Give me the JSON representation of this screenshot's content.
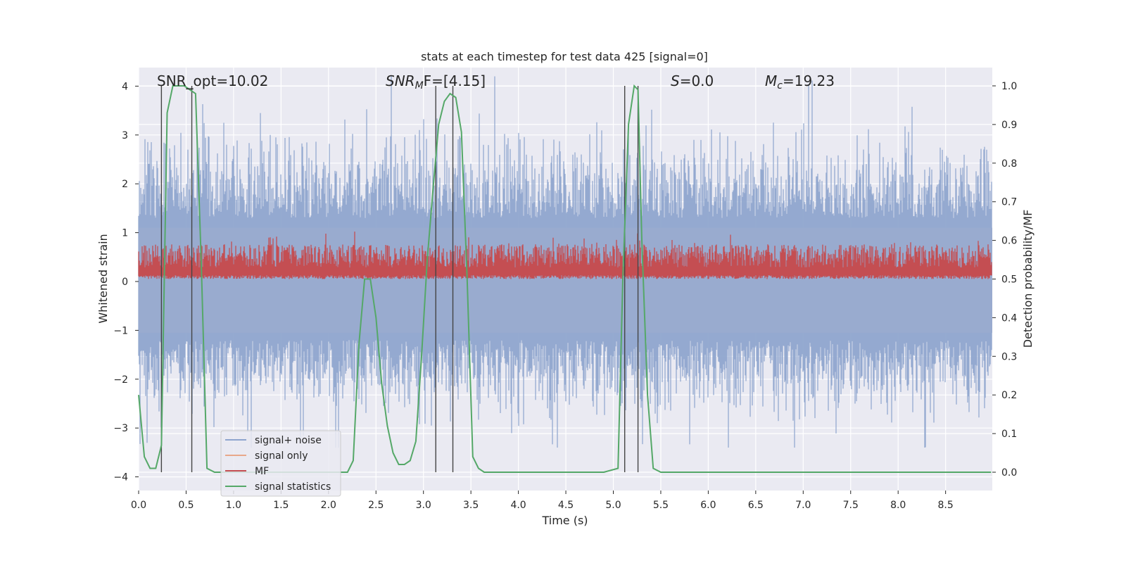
{
  "chart_data": {
    "type": "line",
    "title": "stats at each timestep for test data 425 [signal=0]",
    "xlabel": "Time (s)",
    "ylabel": "Whitened strain",
    "ylabel_right": "Detection probability/MF",
    "xlim": [
      0.0,
      9.0
    ],
    "ylim": [
      -4.3,
      4.4
    ],
    "ylim_right": [
      -0.05,
      1.04
    ],
    "x_ticks": [
      "0.0",
      "0.5",
      "1.0",
      "1.5",
      "2.0",
      "2.5",
      "3.0",
      "3.5",
      "4.0",
      "4.5",
      "5.0",
      "5.5",
      "6.0",
      "6.5",
      "7.0",
      "7.5",
      "8.0",
      "8.5"
    ],
    "y_ticks": [
      "4",
      "3",
      "2",
      "1",
      "0",
      "−1",
      "−2",
      "−3",
      "−4"
    ],
    "y_tick_values": [
      4,
      3,
      2,
      1,
      0,
      -1,
      -2,
      -3,
      -4
    ],
    "y_ticks_right": [
      "1.0",
      "0.9",
      "0.8",
      "0.7",
      "0.6",
      "0.5",
      "0.4",
      "0.3",
      "0.2",
      "0.1",
      "0.0"
    ],
    "y_tick_values_right": [
      1.0,
      0.9,
      0.8,
      0.7,
      0.6,
      0.5,
      0.4,
      0.3,
      0.2,
      0.1,
      0.0
    ],
    "annotations": {
      "snr_opt": "SNR_opt=10.02",
      "snr_mf_main": "SNR",
      "snr_mf_sub": "M",
      "snr_mf_rest": "F=[4.15]",
      "s_main": "S",
      "s_rest": "=0.0",
      "mc_main": "M",
      "mc_sub": "c",
      "mc_rest": "=19.23"
    },
    "legend": {
      "position": "lower-left",
      "entries": [
        {
          "name": "signal+ noise",
          "color": "#8fa5ce"
        },
        {
          "name": "signal only",
          "color": "#e8a88a"
        },
        {
          "name": "MF",
          "color": "#c44e52"
        },
        {
          "name": "signal statistics",
          "color": "#55a868"
        }
      ]
    },
    "series": [
      {
        "name": "signal statistics",
        "axis": "right",
        "color": "#55a868",
        "x": [
          0.0,
          0.06,
          0.12,
          0.18,
          0.24,
          0.3,
          0.36,
          0.42,
          0.48,
          0.54,
          0.6,
          0.66,
          0.72,
          0.8,
          1.0,
          1.5,
          2.0,
          2.1,
          2.2,
          2.26,
          2.32,
          2.38,
          2.44,
          2.5,
          2.56,
          2.62,
          2.68,
          2.74,
          2.8,
          2.86,
          2.92,
          2.98,
          3.04,
          3.1,
          3.16,
          3.22,
          3.28,
          3.34,
          3.4,
          3.46,
          3.52,
          3.58,
          3.64,
          3.7,
          4.0,
          4.5,
          4.9,
          5.05,
          5.1,
          5.16,
          5.22,
          5.26,
          5.3,
          5.36,
          5.42,
          5.5,
          6.0,
          7.0,
          8.0,
          8.98
        ],
        "y": [
          0.2,
          0.04,
          0.01,
          0.01,
          0.07,
          0.93,
          1.0,
          1.0,
          1.0,
          0.99,
          0.98,
          0.54,
          0.01,
          0.0,
          0.0,
          0.0,
          0.0,
          0.0,
          0.0,
          0.03,
          0.33,
          0.5,
          0.5,
          0.4,
          0.23,
          0.12,
          0.05,
          0.02,
          0.02,
          0.03,
          0.08,
          0.3,
          0.55,
          0.73,
          0.9,
          0.96,
          0.98,
          0.97,
          0.88,
          0.5,
          0.04,
          0.01,
          0.0,
          0.0,
          0.0,
          0.0,
          0.0,
          0.01,
          0.5,
          0.9,
          1.0,
          0.99,
          0.6,
          0.2,
          0.01,
          0.0,
          0.0,
          0.0,
          0.0,
          0.0
        ]
      }
    ],
    "vertical_lines_x": [
      0.24,
      0.56,
      3.13,
      3.31,
      5.12,
      5.26
    ],
    "band_series": [
      {
        "name": "signal+ noise",
        "axis": "left",
        "color": "#8fa5ce",
        "description": "dense noisy trace spanning about −3 to +4"
      },
      {
        "name": "MF",
        "axis": "right",
        "color": "#c44e52",
        "description": "dense noisy trace between about 0.5 and 0.63"
      }
    ]
  }
}
